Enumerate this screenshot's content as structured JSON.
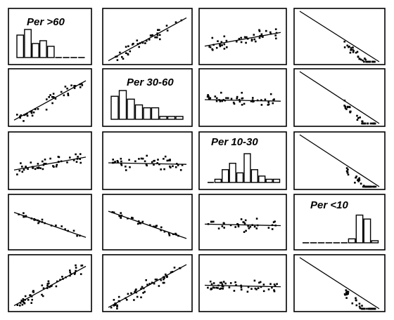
{
  "chart_data": {
    "type": "scatter",
    "layout": "scatterplot-matrix",
    "variables": [
      "Per >60",
      "Per 30-60",
      "Per 10-30",
      "Per <10"
    ],
    "extra_row": true,
    "grid": false,
    "histograms": {
      "Per >60": [
        8,
        10,
        5,
        6,
        4,
        0,
        0,
        0,
        0
      ],
      "Per 30-60": [
        8,
        10,
        7,
        5,
        4,
        4,
        1,
        1,
        1
      ],
      "Per 10-30": [
        0,
        1,
        4,
        6,
        3,
        9,
        4,
        2,
        1,
        1
      ],
      "Per <10": [
        0,
        0,
        0,
        0,
        0,
        0,
        2,
        14,
        12,
        1
      ]
    },
    "scatter_panels": [
      {
        "row": 0,
        "col": 1,
        "trend": "positive",
        "n": 40
      },
      {
        "row": 0,
        "col": 2,
        "trend": "weak-positive",
        "n": 45
      },
      {
        "row": 0,
        "col": 3,
        "trend": "negative",
        "n": 35
      },
      {
        "row": 1,
        "col": 0,
        "trend": "positive",
        "n": 40
      },
      {
        "row": 1,
        "col": 2,
        "trend": "flat",
        "n": 45
      },
      {
        "row": 1,
        "col": 3,
        "trend": "negative",
        "n": 35
      },
      {
        "row": 2,
        "col": 0,
        "trend": "weak-positive",
        "n": 45
      },
      {
        "row": 2,
        "col": 1,
        "trend": "flat",
        "n": 45
      },
      {
        "row": 2,
        "col": 3,
        "trend": "negative",
        "n": 35
      },
      {
        "row": 3,
        "col": 0,
        "trend": "negative",
        "n": 25
      },
      {
        "row": 3,
        "col": 1,
        "trend": "negative",
        "n": 30
      },
      {
        "row": 3,
        "col": 2,
        "trend": "flat",
        "n": 35
      },
      {
        "row": 4,
        "col": 0,
        "trend": "positive",
        "n": 50
      },
      {
        "row": 4,
        "col": 1,
        "trend": "positive",
        "n": 50
      },
      {
        "row": 4,
        "col": 2,
        "trend": "flat",
        "n": 50
      },
      {
        "row": 4,
        "col": 3,
        "trend": "negative",
        "n": 45
      }
    ]
  }
}
